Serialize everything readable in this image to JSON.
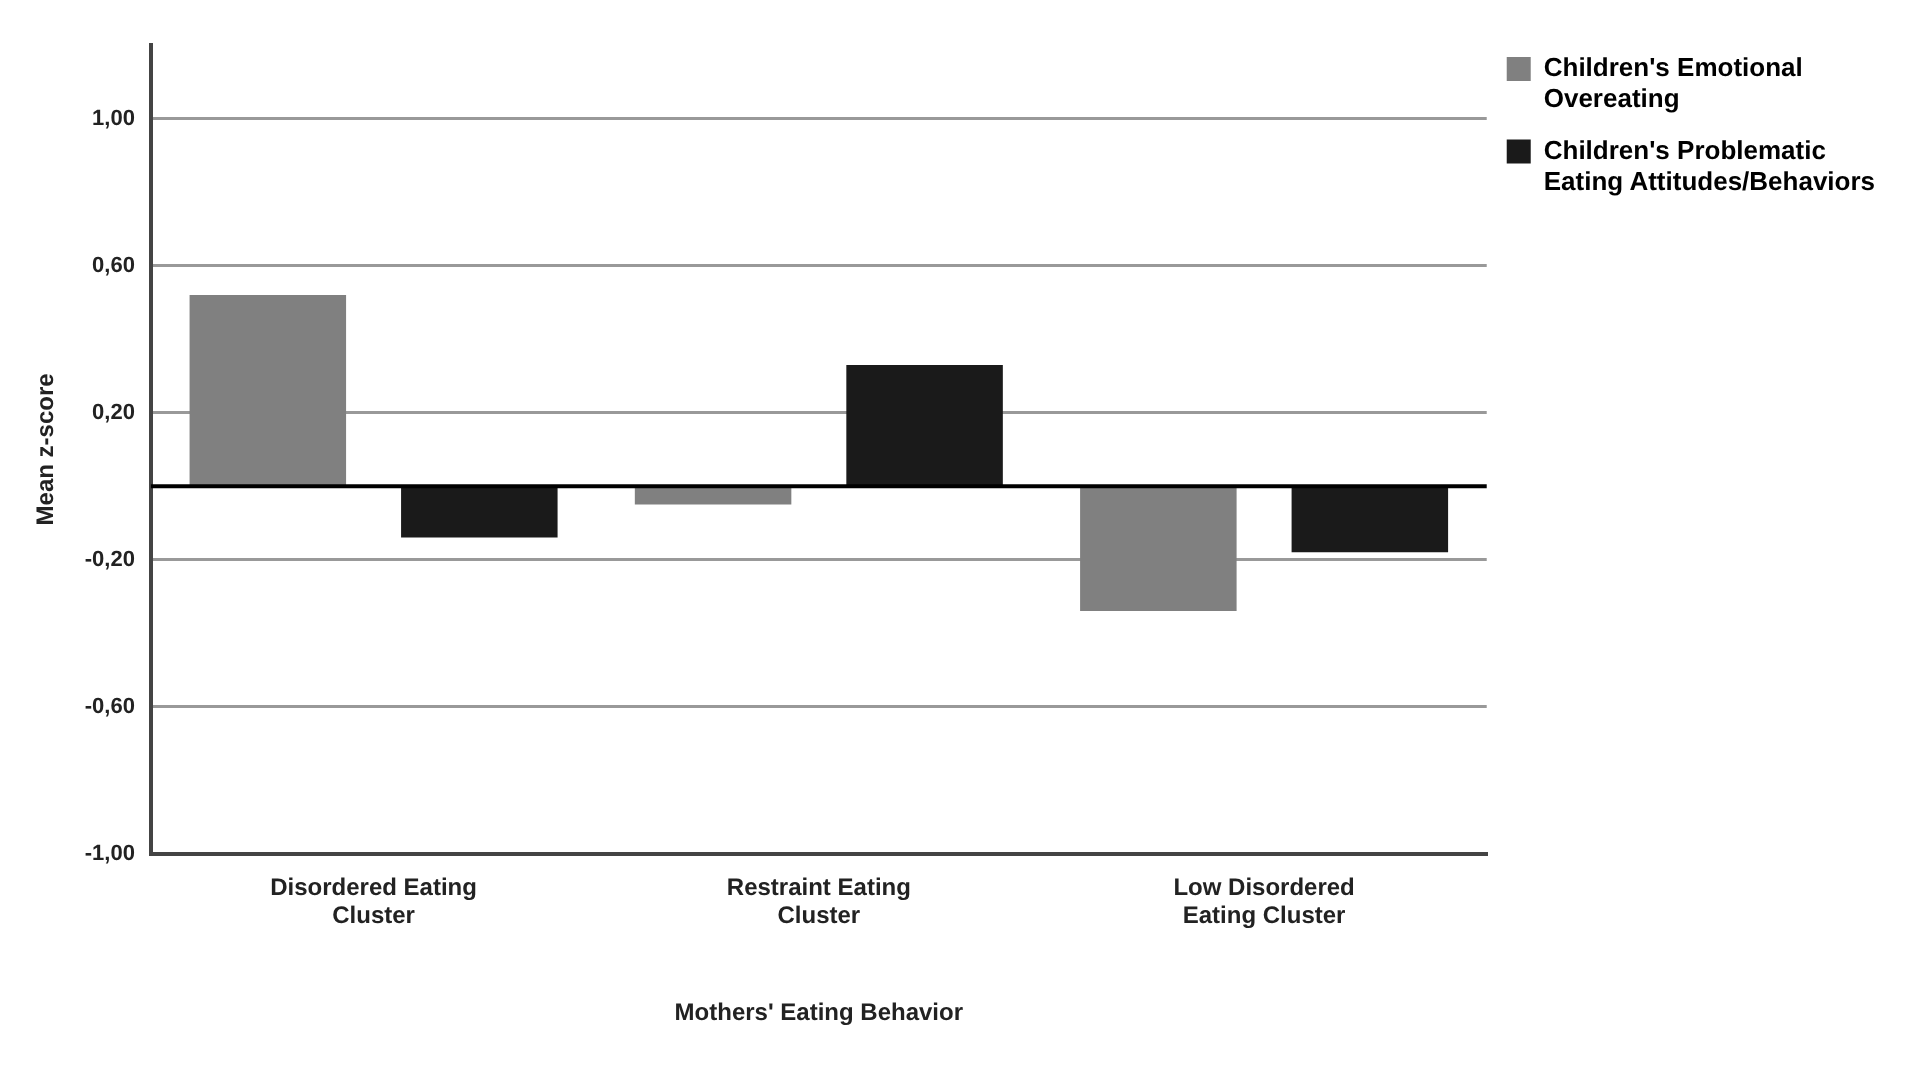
{
  "chart_data": {
    "type": "bar",
    "xlabel": "Mothers' Eating Behavior",
    "ylabel": "Mean z-score",
    "categories": [
      "Disordered Eating Cluster",
      "Restraint Eating Cluster",
      "Low Disordered Eating Cluster"
    ],
    "series": [
      {
        "name": "Children's Emotional Overeating",
        "color": "#808080",
        "values": [
          0.52,
          -0.05,
          -0.34
        ]
      },
      {
        "name": "Children's Problematic Eating Attitudes/Behaviors",
        "color": "#1a1a1a",
        "values": [
          -0.14,
          0.33,
          -0.18
        ]
      }
    ],
    "ylim": [
      -1,
      1.2
    ],
    "yticks": [
      {
        "value": -1,
        "label": "-1,00"
      },
      {
        "value": -0.6,
        "label": "-0,60"
      },
      {
        "value": -0.2,
        "label": "-0,20"
      },
      {
        "value": 0.2,
        "label": "0,20"
      },
      {
        "value": 0.6,
        "label": "0,60"
      },
      {
        "value": 1,
        "label": "1,00"
      }
    ],
    "ref_lines": [
      {
        "axis": "y",
        "value": 0,
        "color": "#000000"
      }
    ],
    "grid": "y",
    "legend": "top right"
  }
}
